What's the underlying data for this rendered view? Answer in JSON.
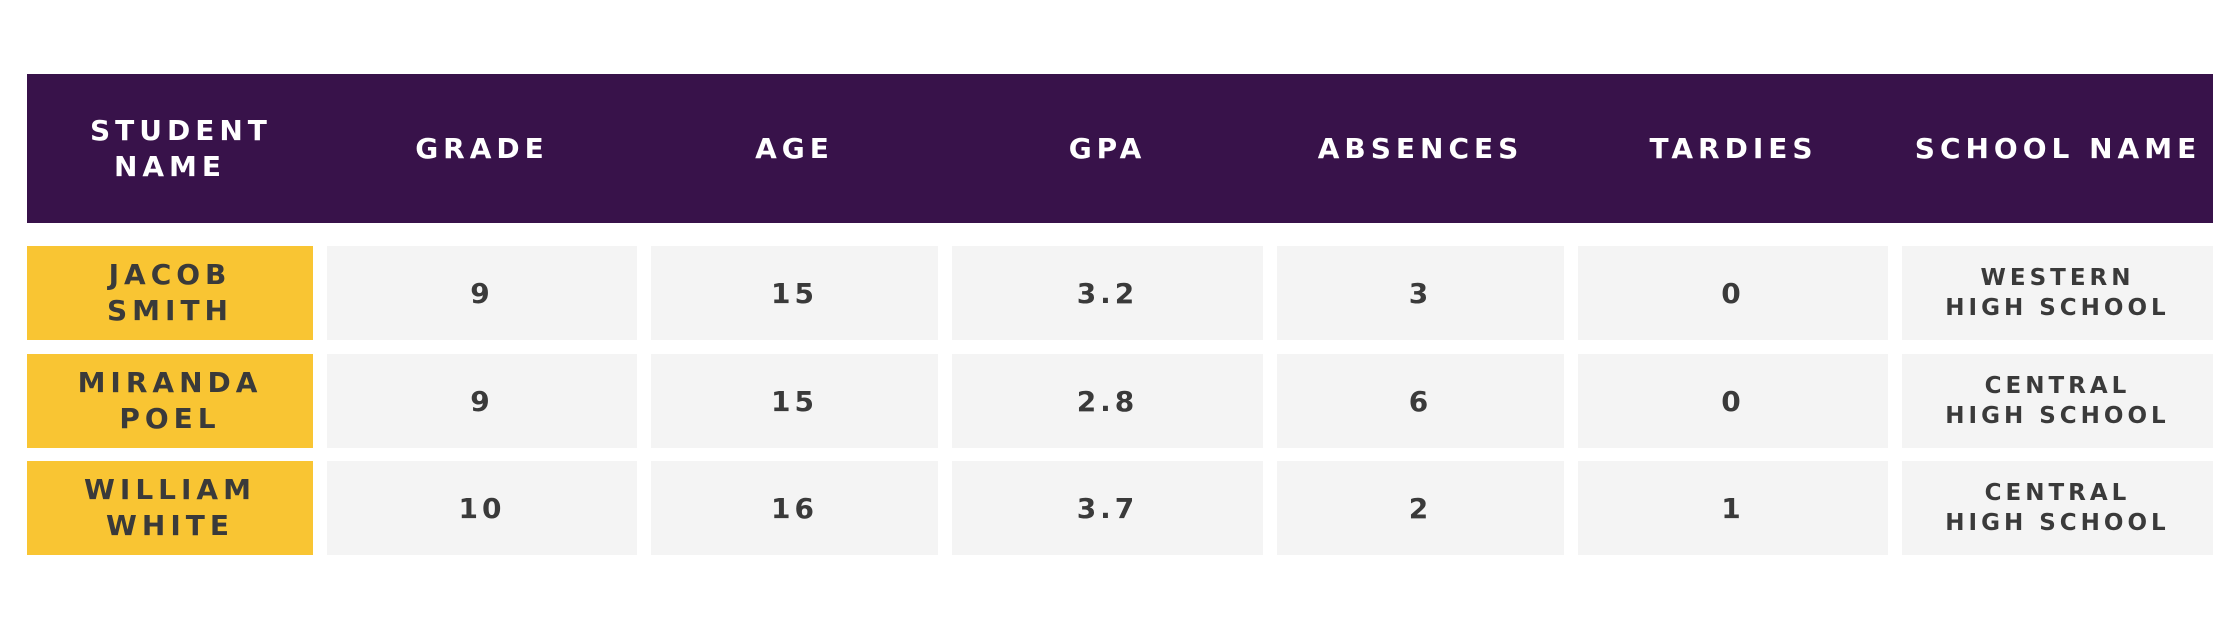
{
  "headers": [
    {
      "key": "student_name",
      "label": "STUDENT NAME"
    },
    {
      "key": "grade",
      "label": "GRADE"
    },
    {
      "key": "age",
      "label": "AGE"
    },
    {
      "key": "gpa",
      "label": "GPA"
    },
    {
      "key": "absences",
      "label": "ABSENCES"
    },
    {
      "key": "tardies",
      "label": "TARDIES"
    },
    {
      "key": "school",
      "label": "SCHOOL NAME"
    }
  ],
  "rows": [
    {
      "name": "JACOB SMITH",
      "grade": "9",
      "age": "15",
      "gpa": "3.2",
      "absences": "3",
      "tardies": "0",
      "school": "WESTERN HIGH SCHOOL"
    },
    {
      "name": "MIRANDA POEL",
      "grade": "9",
      "age": "15",
      "gpa": "2.8",
      "absences": "6",
      "tardies": "0",
      "school": "CENTRAL HIGH SCHOOL"
    },
    {
      "name": "WILLIAM WHITE",
      "grade": "10",
      "age": "16",
      "gpa": "3.7",
      "absences": "2",
      "tardies": "1",
      "school": "CENTRAL HIGH SCHOOL"
    }
  ],
  "colors": {
    "header_bg": "#38124a",
    "name_bg": "#f9c533",
    "cell_bg": "#f4f4f4",
    "text_dark": "#3a3a3a"
  }
}
